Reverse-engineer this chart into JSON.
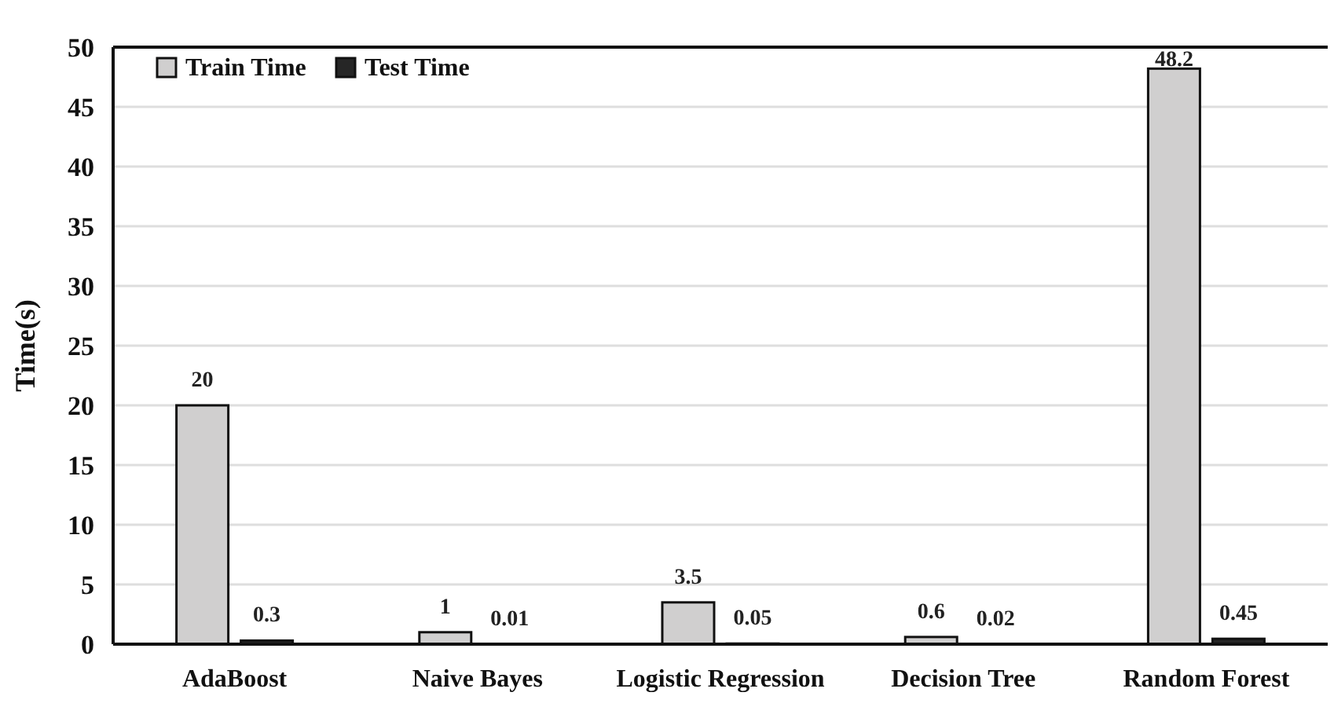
{
  "chart_data": {
    "type": "bar",
    "ylabel": "Time(s)",
    "categories": [
      "AdaBoost",
      "Naive Bayes",
      "Logistic Regression",
      "Decision Tree",
      "Random Forest"
    ],
    "series": [
      {
        "name": "Train Time",
        "color": "#d0cfcf",
        "values": [
          20,
          1,
          3.5,
          0.6,
          48.2
        ]
      },
      {
        "name": "Test Time",
        "color": "#262626",
        "values": [
          0.3,
          0.01,
          0.05,
          0.02,
          0.45
        ]
      }
    ],
    "ylim": [
      0,
      50
    ],
    "yticks": [
      0,
      5,
      10,
      15,
      20,
      25,
      30,
      35,
      40,
      45,
      50
    ],
    "grid": "y",
    "legend": "top left",
    "data_labels": true
  }
}
